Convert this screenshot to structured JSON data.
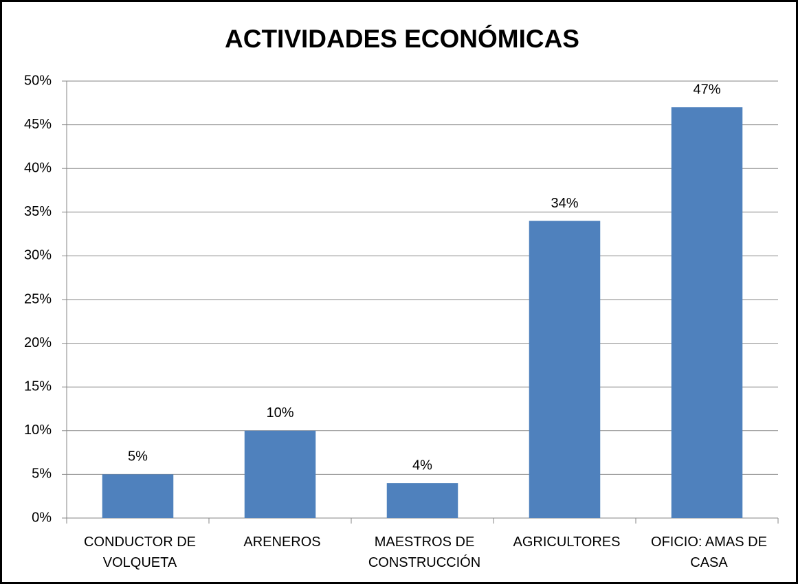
{
  "chart_data": {
    "type": "bar",
    "title": "ACTIVIDADES ECONÓMICAS",
    "categories": [
      "CONDUCTOR DE VOLQUETA",
      "ARENEROS",
      "MAESTROS DE CONSTRUCCIÓN",
      "AGRICULTORES",
      "OFICIO: AMAS DE CASA"
    ],
    "values": [
      5,
      10,
      4,
      34,
      47
    ],
    "value_labels": [
      "5%",
      "10%",
      "4%",
      "34%",
      "47%"
    ],
    "color": "#4f81bd",
    "ylim": [
      0,
      50
    ],
    "yticks": [
      {
        "value": 0,
        "label": "0%"
      },
      {
        "value": 5,
        "label": "5%"
      },
      {
        "value": 10,
        "label": "10%"
      },
      {
        "value": 15,
        "label": "15%"
      },
      {
        "value": 20,
        "label": "20%"
      },
      {
        "value": 25,
        "label": "25%"
      },
      {
        "value": 30,
        "label": "30%"
      },
      {
        "value": 35,
        "label": "35%"
      },
      {
        "value": 40,
        "label": "40%"
      },
      {
        "value": 45,
        "label": "45%"
      },
      {
        "value": 50,
        "label": "50%"
      }
    ],
    "grid": true
  }
}
